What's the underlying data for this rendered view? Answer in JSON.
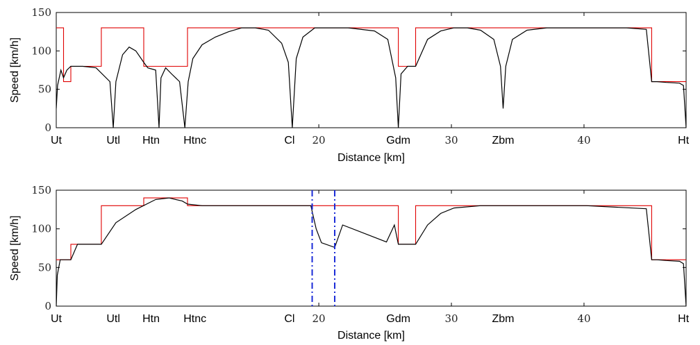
{
  "chart_data": [
    {
      "type": "line",
      "title": "",
      "xlabel": "Distance [km]",
      "ylabel": "Speed [km/h]",
      "xlim": [
        0,
        47.5
      ],
      "ylim": [
        0,
        150
      ],
      "yticks": [
        0,
        50,
        100,
        150
      ],
      "xticks_numeric": [
        {
          "x": 19.8,
          "label": "20"
        },
        {
          "x": 29.8,
          "label": "30"
        },
        {
          "x": 39.8,
          "label": "40"
        }
      ],
      "xticks_station": [
        {
          "x": 0.0,
          "label": "Ut"
        },
        {
          "x": 4.3,
          "label": "Utl"
        },
        {
          "x": 7.7,
          "label": "Htn"
        },
        {
          "x": 9.7,
          "label": "Htnc"
        },
        {
          "x": 17.8,
          "label": "Cl"
        },
        {
          "x": 25.8,
          "label": "Gdm"
        },
        {
          "x": 33.7,
          "label": "Zbm"
        },
        {
          "x": 47.3,
          "label": "Ht"
        }
      ],
      "series": [
        {
          "color": "#e00000",
          "x": [
            0,
            0.55,
            0.55,
            1.1,
            1.1,
            1.1,
            3.4,
            3.4,
            6.6,
            6.6,
            9.9,
            9.9,
            25.8,
            25.8,
            27.1,
            27.1,
            44.9,
            44.9,
            47.5
          ],
          "y": [
            130,
            130,
            60,
            60,
            80,
            80,
            80,
            130,
            130,
            80,
            80,
            130,
            130,
            80,
            80,
            130,
            130,
            60,
            60
          ]
        },
        {
          "color": "#000000",
          "x": [
            0,
            0.1,
            0.35,
            0.55,
            0.8,
            1.1,
            2.0,
            3.0,
            4.05,
            4.3,
            4.5,
            5.0,
            5.5,
            6.0,
            6.6,
            6.9,
            7.5,
            7.75,
            7.9,
            8.25,
            8.7,
            9.3,
            9.7,
            9.95,
            10.3,
            11,
            12,
            13,
            14,
            15,
            16,
            17,
            17.5,
            17.8,
            18.1,
            18.6,
            19.5,
            20.5,
            22,
            24,
            25.0,
            25.6,
            25.8,
            26.0,
            26.5,
            27.1,
            28,
            29,
            30,
            31,
            32,
            33,
            33.5,
            33.7,
            33.9,
            34.4,
            35.5,
            37,
            40,
            43,
            44.5,
            44.9,
            45.3,
            46,
            47,
            47.3,
            47.5
          ],
          "y": [
            25,
            55,
            75,
            65,
            75,
            80,
            80,
            78,
            60,
            0,
            60,
            95,
            105,
            100,
            85,
            78,
            75,
            0,
            65,
            78,
            70,
            60,
            0,
            60,
            90,
            108,
            118,
            125,
            130,
            130,
            127,
            110,
            85,
            0,
            90,
            118,
            130,
            130,
            130,
            126,
            115,
            65,
            0,
            70,
            80,
            80,
            115,
            126,
            130,
            130,
            127,
            115,
            80,
            25,
            80,
            115,
            127,
            130,
            130,
            130,
            128,
            60,
            60,
            59,
            58,
            55,
            0
          ]
        }
      ]
    },
    {
      "type": "line",
      "title": "",
      "xlabel": "Distance [km]",
      "ylabel": "Speed [km/h]",
      "xlim": [
        0,
        47.5
      ],
      "ylim": [
        0,
        150
      ],
      "yticks": [
        0,
        50,
        100,
        150
      ],
      "xticks_numeric": [
        {
          "x": 19.8,
          "label": "20"
        },
        {
          "x": 29.8,
          "label": "30"
        },
        {
          "x": 39.8,
          "label": "40"
        }
      ],
      "xticks_station": [
        {
          "x": 0.0,
          "label": "Ut"
        },
        {
          "x": 4.3,
          "label": "Utl"
        },
        {
          "x": 7.7,
          "label": "Htn"
        },
        {
          "x": 9.7,
          "label": "Htnc"
        },
        {
          "x": 17.8,
          "label": "Cl"
        },
        {
          "x": 25.8,
          "label": "Gdm"
        },
        {
          "x": 33.7,
          "label": "Zbm"
        },
        {
          "x": 47.3,
          "label": "Ht"
        }
      ],
      "vlines": [
        19.3,
        21.0
      ],
      "series": [
        {
          "color": "#e00000",
          "x": [
            0,
            1.1,
            1.1,
            3.4,
            3.4,
            6.6,
            6.6,
            9.9,
            9.9,
            25.8,
            25.8,
            27.1,
            27.1,
            44.9,
            44.9,
            47.5
          ],
          "y": [
            60,
            60,
            80,
            80,
            130,
            130,
            140,
            140,
            130,
            130,
            80,
            80,
            130,
            130,
            60,
            60
          ]
        },
        {
          "color": "#000000",
          "x": [
            0,
            0.08,
            0.3,
            1.1,
            1.6,
            3.4,
            4.5,
            6.0,
            7.5,
            8.5,
            9.5,
            9.9,
            11,
            14,
            17,
            19.2,
            19.6,
            20.0,
            21.0,
            21.6,
            24.9,
            25.5,
            25.8,
            26.5,
            27.1,
            28,
            29,
            30,
            32,
            35,
            40,
            44.5,
            44.9,
            45.3,
            46,
            47,
            47.3,
            47.5
          ],
          "y": [
            0,
            40,
            60,
            60,
            80,
            80,
            108,
            125,
            138,
            140,
            136,
            132,
            130,
            130,
            130,
            130,
            100,
            82,
            76,
            105,
            83,
            105,
            80,
            80,
            80,
            105,
            120,
            127,
            130,
            130,
            130,
            126,
            60,
            60,
            59,
            58,
            55,
            0
          ]
        }
      ]
    }
  ]
}
